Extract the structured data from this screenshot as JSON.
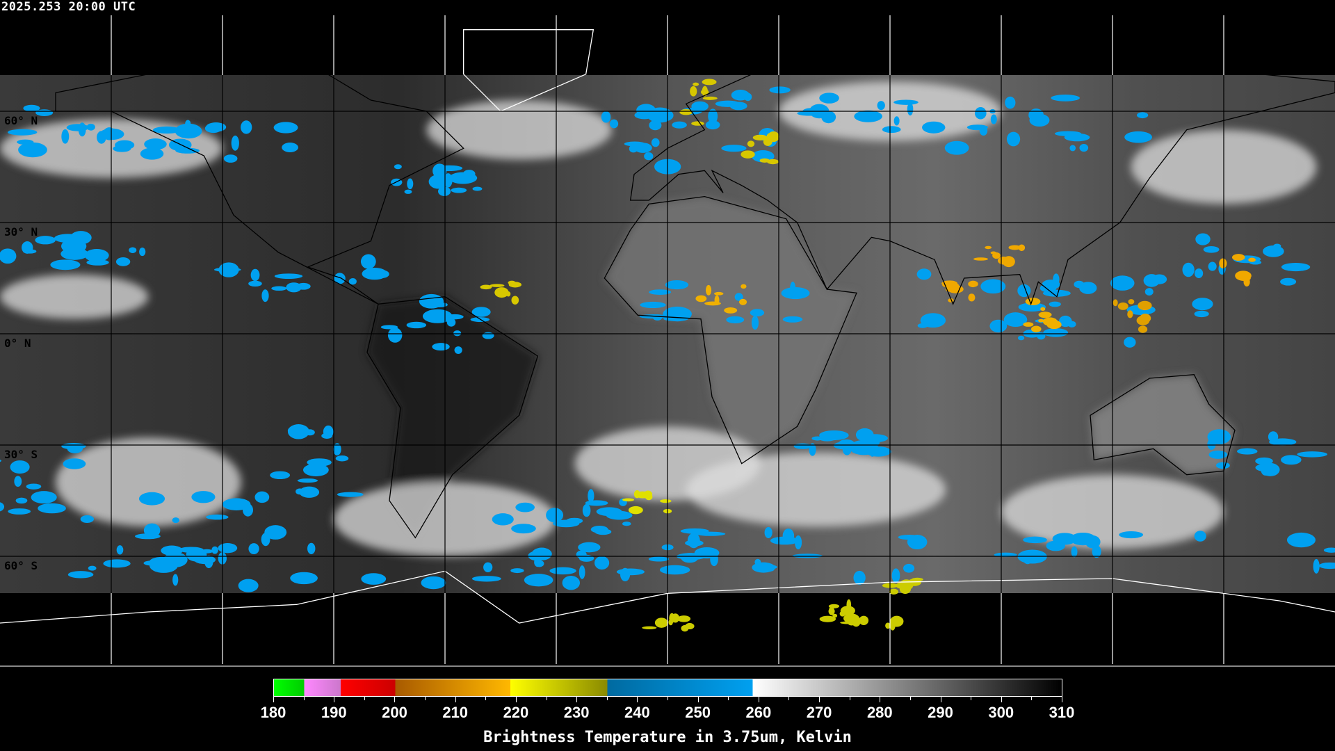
{
  "header": {
    "timestamp": "2025.253 20:00 UTC"
  },
  "map": {
    "projection": "equirectangular",
    "lat_labels": [
      "60° N",
      "30° N",
      "0° N",
      "30° S",
      "60° S"
    ],
    "gridline_spacing_deg": 30
  },
  "colorbar": {
    "ticks": [
      "180",
      "190",
      "200",
      "210",
      "220",
      "230",
      "240",
      "250",
      "260",
      "270",
      "280",
      "290",
      "300",
      "310"
    ],
    "range": [
      180,
      310
    ],
    "label": "Brightness Temperature in 3.75um, Kelvin",
    "segments": [
      {
        "from": 180,
        "to": 185,
        "colors": [
          "#00ff00",
          "#00cc00"
        ]
      },
      {
        "from": 185,
        "to": 191,
        "colors": [
          "#ff88ff",
          "#cc77cc"
        ]
      },
      {
        "from": 191,
        "to": 200,
        "colors": [
          "#ff0000",
          "#cc0000"
        ]
      },
      {
        "from": 200,
        "to": 219,
        "colors": [
          "#a85a00",
          "#ffb800"
        ]
      },
      {
        "from": 219,
        "to": 235,
        "colors": [
          "#ffff00",
          "#8a8a00"
        ]
      },
      {
        "from": 235,
        "to": 259,
        "colors": [
          "#006aa0",
          "#00a0f0"
        ]
      },
      {
        "from": 259,
        "to": 310,
        "colors": [
          "#ffffff",
          "#000000"
        ]
      }
    ]
  }
}
